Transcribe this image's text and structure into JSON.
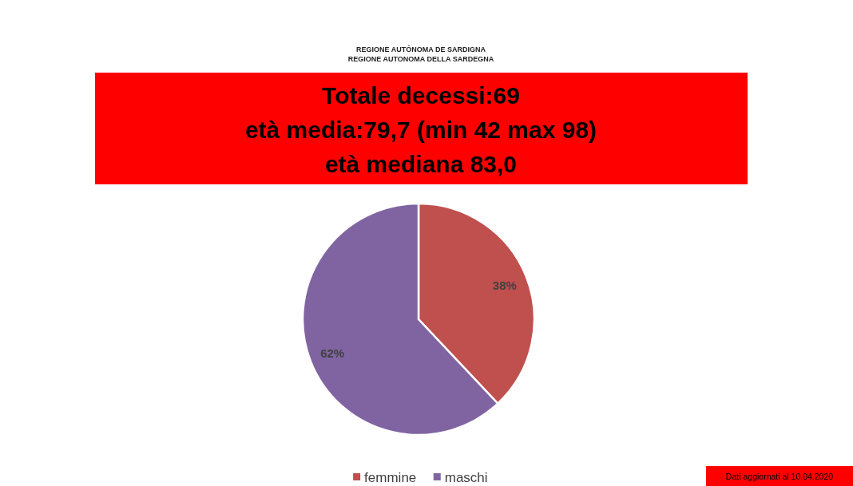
{
  "chart_data": {
    "type": "pie",
    "title": "Totale decessi:69\netà media:79,7 (min 42 max 98)\netà mediana 83,0",
    "categories": [
      "femmine",
      "maschi"
    ],
    "values": [
      38,
      62
    ],
    "colors": [
      "#c0504d",
      "#8064a2"
    ],
    "value_labels": [
      "38%",
      "62%"
    ],
    "legend": "bottom",
    "annotations": [
      "REGIONE AUTÒNOMA DE SARDIGNA",
      "REGIONE AUTONOMA DELLA SARDEGNA",
      "Dati aggiornati al 10.04.2020"
    ]
  }
}
